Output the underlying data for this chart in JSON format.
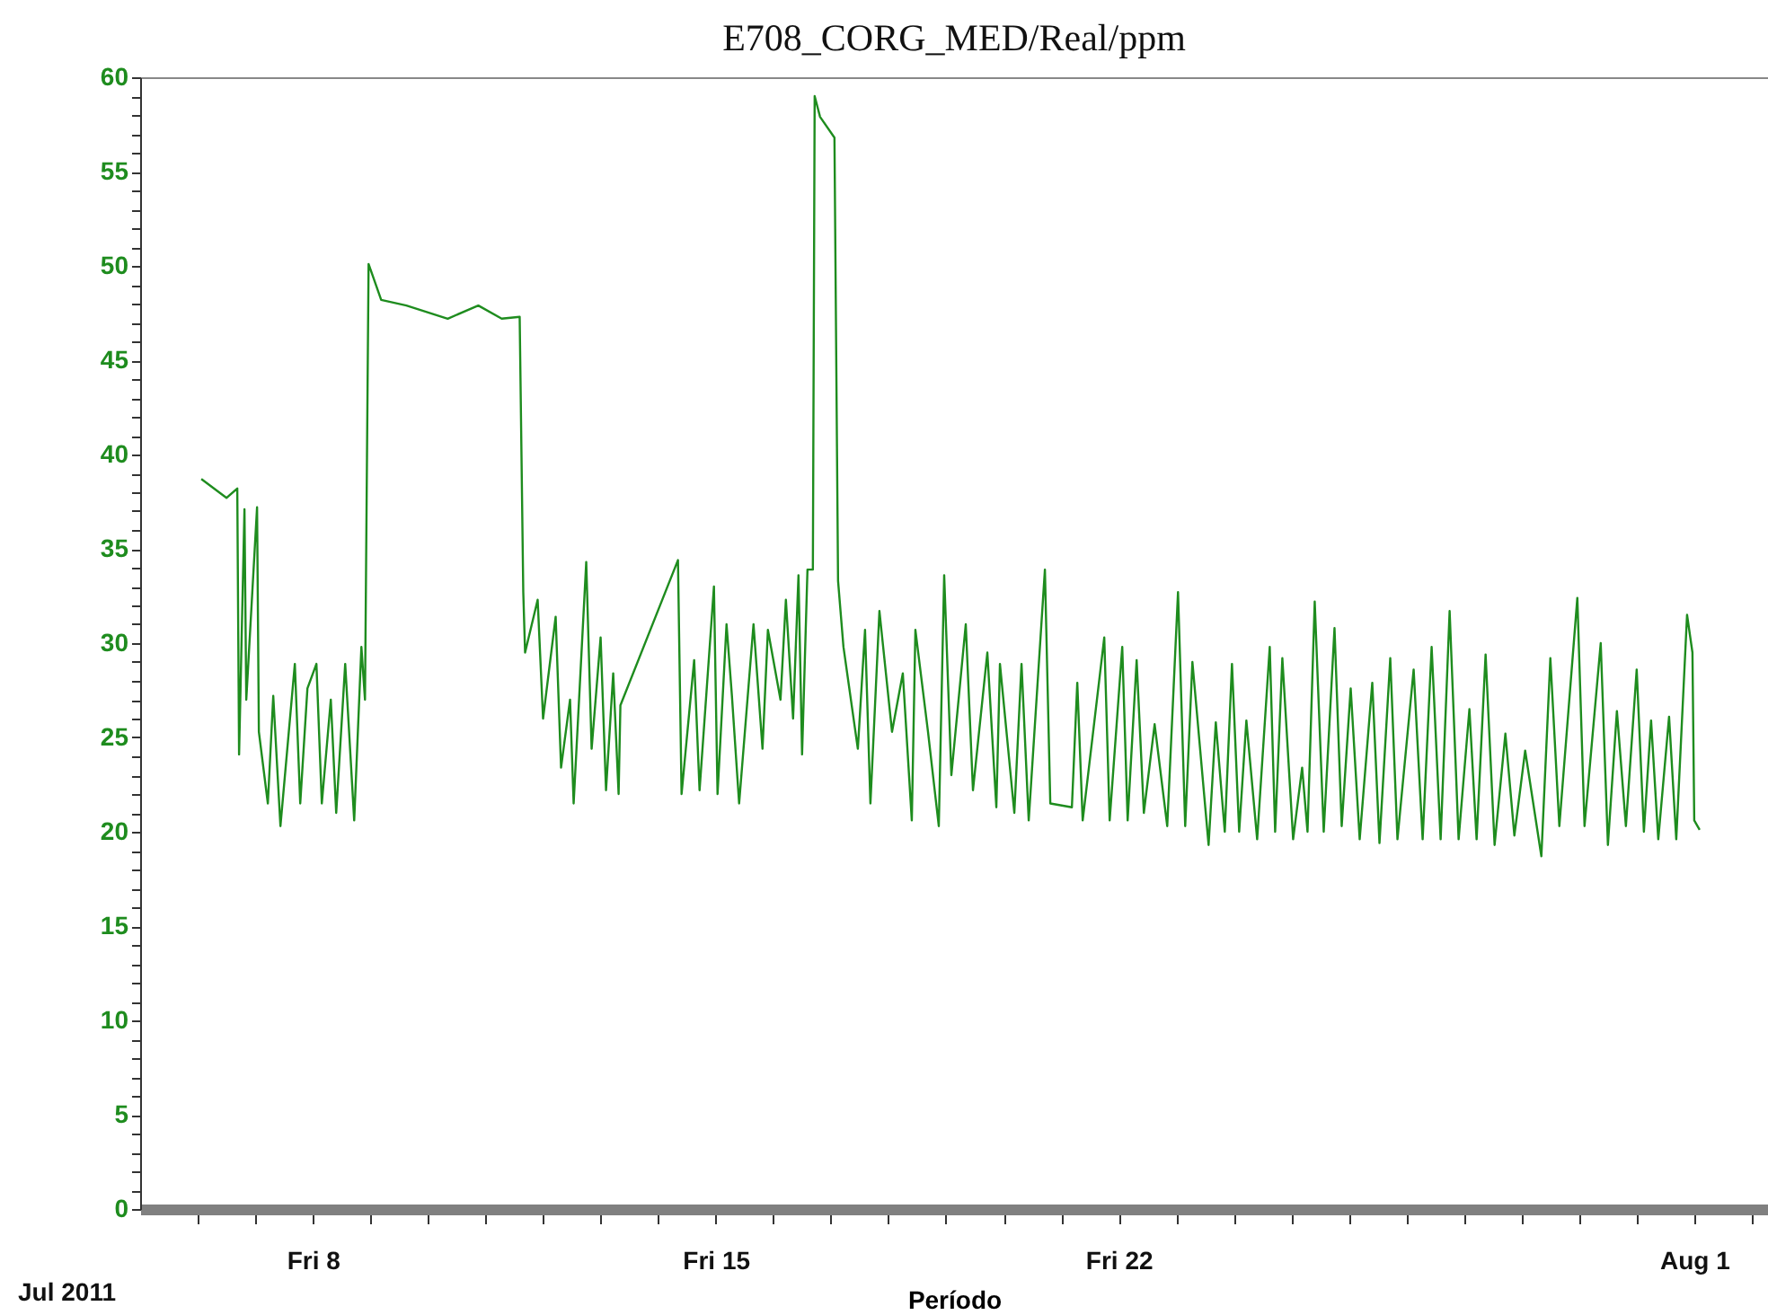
{
  "chart_data": {
    "type": "line",
    "title": "E708_CORG_MED/Real/ppm",
    "xlabel": "Período",
    "annotations": [
      "Jul 2011"
    ],
    "x": [
      "2011-07-06T01:30",
      "2011-07-06T12:00",
      "2011-07-06T16:30",
      "2011-07-06T17:15",
      "2011-07-06T19:30",
      "2011-07-06T20:15",
      "2011-07-07T00:45",
      "2011-07-07T01:30",
      "2011-07-07T05:15",
      "2011-07-07T07:30",
      "2011-07-07T10:30",
      "2011-07-07T16:30",
      "2011-07-07T18:45",
      "2011-07-07T21:45",
      "2011-07-08T01:30",
      "2011-07-08T03:45",
      "2011-07-08T07:30",
      "2011-07-08T09:45",
      "2011-07-08T13:30",
      "2011-07-08T17:15",
      "2011-07-08T20:15",
      "2011-07-08T21:45",
      "2011-07-08T23:15",
      "2011-07-09T04:30",
      "2011-07-09T15:00",
      "2011-07-10T08:15",
      "2011-07-10T21:00",
      "2011-07-11T06:45",
      "2011-07-11T14:15",
      "2011-07-11T15:45",
      "2011-07-11T16:30",
      "2011-07-11T21:45",
      "2011-07-12T00:00",
      "2011-07-12T05:15",
      "2011-07-12T07:30",
      "2011-07-12T11:15",
      "2011-07-12T12:45",
      "2011-07-12T18:00",
      "2011-07-12T20:15",
      "2011-07-13T00:00",
      "2011-07-13T02:15",
      "2011-07-13T05:15",
      "2011-07-13T07:30",
      "2011-07-13T08:15",
      "2011-07-14T08:15",
      "2011-07-14T09:45",
      "2011-07-14T15:00",
      "2011-07-14T17:15",
      "2011-07-14T23:15",
      "2011-07-15T00:45",
      "2011-07-15T04:30",
      "2011-07-15T06:45",
      "2011-07-15T09:45",
      "2011-07-15T15:45",
      "2011-07-15T19:30",
      "2011-07-15T21:45",
      "2011-07-16T03:00",
      "2011-07-16T05:15",
      "2011-07-16T08:15",
      "2011-07-16T10:30",
      "2011-07-16T12:00",
      "2011-07-16T14:15",
      "2011-07-16T16:30",
      "2011-07-16T17:15",
      "2011-07-16T19:30",
      "2011-07-17T01:30",
      "2011-07-17T03:00",
      "2011-07-17T05:15",
      "2011-07-17T11:15",
      "2011-07-17T14:15",
      "2011-07-17T16:30",
      "2011-07-17T20:15",
      "2011-07-18T01:30",
      "2011-07-18T06:00",
      "2011-07-18T09:45",
      "2011-07-18T11:15",
      "2011-07-18T16:30",
      "2011-07-18T21:00",
      "2011-07-18T23:15",
      "2011-07-19T02:15",
      "2011-07-19T08:15",
      "2011-07-19T11:15",
      "2011-07-19T17:15",
      "2011-07-19T21:00",
      "2011-07-19T22:30",
      "2011-07-20T04:30",
      "2011-07-20T07:30",
      "2011-07-20T10:30",
      "2011-07-20T17:15",
      "2011-07-20T19:30",
      "2011-07-21T04:30",
      "2011-07-21T06:45",
      "2011-07-21T09:00",
      "2011-07-21T18:00",
      "2011-07-21T20:15",
      "2011-07-22T01:30",
      "2011-07-22T03:45",
      "2011-07-22T07:30",
      "2011-07-22T10:30",
      "2011-07-22T15:00",
      "2011-07-22T20:15",
      "2011-07-23T00:45",
      "2011-07-23T03:45",
      "2011-07-23T06:45",
      "2011-07-23T13:30",
      "2011-07-23T16:30",
      "2011-07-23T20:15",
      "2011-07-23T23:15",
      "2011-07-24T02:15",
      "2011-07-24T05:15",
      "2011-07-24T09:45",
      "2011-07-24T15:00",
      "2011-07-24T17:15",
      "2011-07-24T20:15",
      "2011-07-25T00:45",
      "2011-07-25T04:30",
      "2011-07-25T06:45",
      "2011-07-25T09:45",
      "2011-07-25T13:30",
      "2011-07-25T18:00",
      "2011-07-25T21:00",
      "2011-07-26T00:45",
      "2011-07-26T04:30",
      "2011-07-26T09:45",
      "2011-07-26T12:45",
      "2011-07-26T17:15",
      "2011-07-26T20:15",
      "2011-07-27T03:00",
      "2011-07-27T06:45",
      "2011-07-27T10:30",
      "2011-07-27T14:15",
      "2011-07-27T18:00",
      "2011-07-27T21:45",
      "2011-07-28T02:15",
      "2011-07-28T05:15",
      "2011-07-28T09:00",
      "2011-07-28T12:45",
      "2011-07-28T17:15",
      "2011-07-28T21:00",
      "2011-07-29T01:30",
      "2011-07-29T08:15",
      "2011-07-29T12:00",
      "2011-07-29T15:45",
      "2011-07-29T23:15",
      "2011-07-30T02:15",
      "2011-07-30T09:00",
      "2011-07-30T12:00",
      "2011-07-30T15:45",
      "2011-07-30T19:30",
      "2011-07-31T00:00",
      "2011-07-31T03:00",
      "2011-07-31T06:00",
      "2011-07-31T09:00",
      "2011-07-31T13:30",
      "2011-07-31T16:30",
      "2011-07-31T21:00",
      "2011-07-31T23:15",
      "2011-08-01T00:00",
      "2011-08-01T02:15"
    ],
    "series": [
      {
        "color": "#1e8c1e",
        "values": [
          38.7,
          37.7,
          38.2,
          24.1,
          37.1,
          27,
          37.2,
          25.3,
          21.5,
          27.2,
          20.3,
          28.9,
          21.5,
          27.6,
          28.9,
          21.5,
          27,
          21,
          28.9,
          20.6,
          29.8,
          27,
          50.1,
          48.2,
          47.9,
          47.2,
          47.9,
          47.2,
          47.3,
          32.7,
          29.5,
          32.3,
          26,
          31.4,
          23.4,
          27,
          21.5,
          34.3,
          24.4,
          30.3,
          22.2,
          28.4,
          22,
          26.7,
          34.4,
          22,
          29.1,
          22.2,
          33,
          22,
          31,
          27.2,
          21.5,
          31,
          24.4,
          30.7,
          27,
          32.3,
          26,
          33.6,
          24.1,
          33.9,
          33.9,
          59,
          57.9,
          56.8,
          33.3,
          29.8,
          24.4,
          30.7,
          21.5,
          31.7,
          25.3,
          28.4,
          20.6,
          30.7,
          25.3,
          20.3,
          33.6,
          23,
          31,
          22.2,
          29.5,
          21.3,
          28.9,
          21,
          28.9,
          20.6,
          33.9,
          21.5,
          21.3,
          27.9,
          20.6,
          30.3,
          20.6,
          29.8,
          20.6,
          29.1,
          21,
          25.7,
          20.3,
          32.7,
          20.3,
          29,
          19.3,
          25.8,
          20,
          28.9,
          20,
          25.9,
          19.6,
          29.8,
          20,
          29.2,
          19.6,
          23.4,
          20,
          32.2,
          20,
          30.8,
          20.3,
          27.6,
          19.6,
          27.9,
          19.4,
          29.2,
          19.6,
          28.6,
          19.6,
          29.8,
          19.6,
          31.7,
          19.6,
          26.5,
          19.6,
          29.4,
          19.3,
          25.2,
          19.8,
          24.3,
          18.7,
          29.2,
          20.3,
          32.4,
          20.3,
          30,
          19.3,
          26.4,
          20.3,
          28.6,
          20,
          25.9,
          19.6,
          26.1,
          19.6,
          31.5,
          29.5,
          20.6,
          20.1
        ]
      }
    ],
    "xlim": [
      "2011-07-05",
      "2011-08-02T06:45"
    ],
    "xticks": [
      {
        "value": "2011-07-06",
        "label": null
      },
      {
        "value": "2011-07-07",
        "label": null
      },
      {
        "value": "2011-07-08",
        "label": "Fri 8"
      },
      {
        "value": "2011-07-09",
        "label": null
      },
      {
        "value": "2011-07-10",
        "label": null
      },
      {
        "value": "2011-07-11",
        "label": null
      },
      {
        "value": "2011-07-12",
        "label": null
      },
      {
        "value": "2011-07-13",
        "label": null
      },
      {
        "value": "2011-07-14",
        "label": null
      },
      {
        "value": "2011-07-15",
        "label": "Fri 15"
      },
      {
        "value": "2011-07-16",
        "label": null
      },
      {
        "value": "2011-07-17",
        "label": null
      },
      {
        "value": "2011-07-18",
        "label": null
      },
      {
        "value": "2011-07-19",
        "label": null
      },
      {
        "value": "2011-07-20",
        "label": null
      },
      {
        "value": "2011-07-21",
        "label": null
      },
      {
        "value": "2011-07-22",
        "label": "Fri 22"
      },
      {
        "value": "2011-07-23",
        "label": null
      },
      {
        "value": "2011-07-24",
        "label": null
      },
      {
        "value": "2011-07-25",
        "label": null
      },
      {
        "value": "2011-07-26",
        "label": null
      },
      {
        "value": "2011-07-27",
        "label": null
      },
      {
        "value": "2011-07-28",
        "label": null
      },
      {
        "value": "2011-07-29",
        "label": null
      },
      {
        "value": "2011-07-30",
        "label": null
      },
      {
        "value": "2011-07-31",
        "label": null
      },
      {
        "value": "2011-08-01",
        "label": "Aug 1"
      },
      {
        "value": "2011-08-02",
        "label": null
      }
    ],
    "ylim": [
      0,
      60
    ],
    "yticks": [
      0,
      {
        "value": 1,
        "label": null
      },
      {
        "value": 2,
        "label": null
      },
      {
        "value": 3,
        "label": null
      },
      {
        "value": 4,
        "label": null
      },
      5,
      {
        "value": 6,
        "label": null
      },
      {
        "value": 7,
        "label": null
      },
      {
        "value": 8,
        "label": null
      },
      {
        "value": 9,
        "label": null
      },
      10,
      {
        "value": 11,
        "label": null
      },
      {
        "value": 12,
        "label": null
      },
      {
        "value": 13,
        "label": null
      },
      {
        "value": 14,
        "label": null
      },
      15,
      {
        "value": 16,
        "label": null
      },
      {
        "value": 17,
        "label": null
      },
      {
        "value": 18,
        "label": null
      },
      {
        "value": 19,
        "label": null
      },
      20,
      {
        "value": 21,
        "label": null
      },
      {
        "value": 22,
        "label": null
      },
      {
        "value": 23,
        "label": null
      },
      {
        "value": 24,
        "label": null
      },
      25,
      {
        "value": 26,
        "label": null
      },
      {
        "value": 27,
        "label": null
      },
      {
        "value": 28,
        "label": null
      },
      {
        "value": 29,
        "label": null
      },
      30,
      {
        "value": 31,
        "label": null
      },
      {
        "value": 32,
        "label": null
      },
      {
        "value": 33,
        "label": null
      },
      {
        "value": 34,
        "label": null
      },
      35,
      {
        "value": 36,
        "label": null
      },
      {
        "value": 37,
        "label": null
      },
      {
        "value": 38,
        "label": null
      },
      {
        "value": 39,
        "label": null
      },
      40,
      {
        "value": 41,
        "label": null
      },
      {
        "value": 42,
        "label": null
      },
      {
        "value": 43,
        "label": null
      },
      {
        "value": 44,
        "label": null
      },
      45,
      {
        "value": 46,
        "label": null
      },
      {
        "value": 47,
        "label": null
      },
      {
        "value": 48,
        "label": null
      },
      {
        "value": 49,
        "label": null
      },
      50,
      {
        "value": 51,
        "label": null
      },
      {
        "value": 52,
        "label": null
      },
      {
        "value": 53,
        "label": null
      },
      {
        "value": 54,
        "label": null
      },
      55,
      {
        "value": 56,
        "label": null
      },
      {
        "value": 57,
        "label": null
      },
      {
        "value": 58,
        "label": null
      },
      {
        "value": 59,
        "label": null
      },
      60
    ],
    "grid": false,
    "legend": false,
    "marker": "none",
    "line_style": "solid"
  }
}
